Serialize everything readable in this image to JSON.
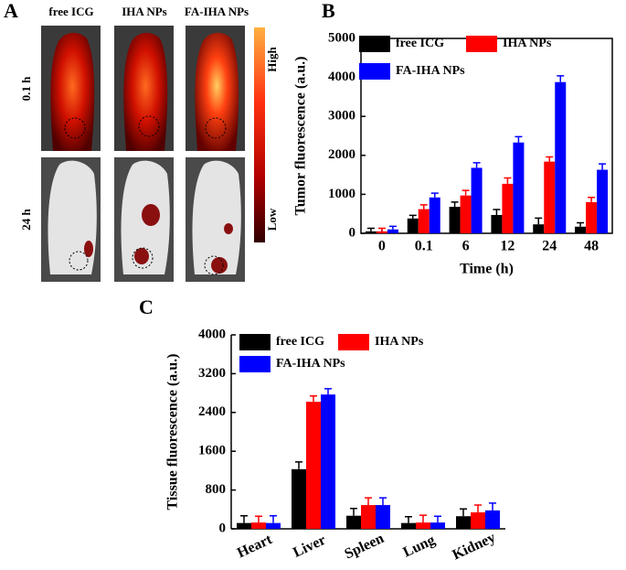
{
  "panel_a": {
    "panel": "A",
    "columns": [
      "free ICG",
      "IHA NPs",
      "FA-IHA NPs"
    ],
    "rows": [
      "0.1 h",
      "24 h"
    ],
    "scale_high": "High",
    "scale_low": "Low"
  },
  "chart_data": [
    {
      "type": "bar",
      "panel": "B",
      "xlabel": "Time (h)",
      "ylabel": "Tumor fluorescence (a.u.)",
      "categories": [
        "0",
        "0.1",
        "6",
        "12",
        "24",
        "48"
      ],
      "series": [
        {
          "name": "free ICG",
          "color": "#000000",
          "values": [
            50,
            380,
            680,
            470,
            230,
            170
          ],
          "errors": [
            80,
            80,
            120,
            140,
            160,
            100
          ]
        },
        {
          "name": "IHA NPs",
          "color": "#ff0000",
          "values": [
            50,
            620,
            970,
            1270,
            1840,
            800
          ],
          "errors": [
            80,
            110,
            130,
            150,
            120,
            120
          ]
        },
        {
          "name": "FA-IHA NPs",
          "color": "#0000ff",
          "values": [
            100,
            920,
            1680,
            2330,
            3880,
            1630
          ],
          "errors": [
            80,
            110,
            130,
            150,
            160,
            150
          ]
        }
      ],
      "ylim": [
        0,
        5000
      ],
      "yticks": [
        0,
        1000,
        2000,
        3000,
        4000,
        5000
      ]
    },
    {
      "type": "bar",
      "panel": "C",
      "ylabel": "Tissue fluorescence (a.u.)",
      "categories": [
        "Heart",
        "Liver",
        "Spleen",
        "Lung",
        "Kidney"
      ],
      "series": [
        {
          "name": "free ICG",
          "color": "#000000",
          "values": [
            120,
            1230,
            270,
            120,
            260
          ],
          "errors": [
            150,
            150,
            150,
            130,
            150
          ]
        },
        {
          "name": "IHA NPs",
          "color": "#ff0000",
          "values": [
            130,
            2620,
            490,
            130,
            340
          ],
          "errors": [
            130,
            120,
            150,
            150,
            150
          ]
        },
        {
          "name": "FA-IHA NPs",
          "color": "#0000ff",
          "values": [
            120,
            2770,
            490,
            130,
            380
          ],
          "errors": [
            150,
            120,
            150,
            130,
            150
          ]
        }
      ],
      "ylim": [
        0,
        4000
      ],
      "yticks": [
        0,
        800,
        1600,
        2400,
        3200,
        4000
      ]
    }
  ]
}
